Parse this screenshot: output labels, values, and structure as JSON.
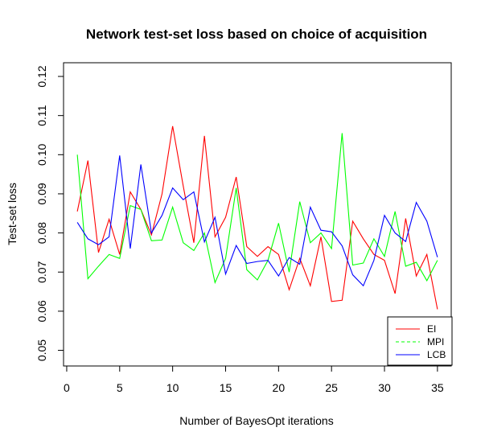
{
  "chart_data": {
    "type": "line",
    "title": "Network test-set loss based on choice of acquisition",
    "xlabel": "Number of BayesOpt iterations",
    "ylabel": "Test-set loss",
    "xlim": [
      -0.3,
      36.3
    ],
    "ylim": [
      0.046,
      0.1235
    ],
    "xticks": [
      0,
      5,
      10,
      15,
      20,
      25,
      30,
      35
    ],
    "yticks": [
      0.05,
      0.06,
      0.07,
      0.08,
      0.09,
      0.1,
      0.11,
      0.12
    ],
    "xtick_labels": [
      "0",
      "5",
      "10",
      "15",
      "20",
      "25",
      "30",
      "35"
    ],
    "ytick_labels": [
      "0.05",
      "0.06",
      "0.07",
      "0.08",
      "0.09",
      "0.10",
      "0.11",
      "0.12"
    ],
    "grid": false,
    "legend_position": "bottom-right",
    "x": [
      1,
      2,
      3,
      4,
      5,
      6,
      7,
      8,
      9,
      10,
      11,
      12,
      13,
      14,
      15,
      16,
      17,
      18,
      19,
      20,
      21,
      22,
      23,
      24,
      25,
      26,
      27,
      28,
      29,
      30,
      31,
      32,
      33,
      34,
      35
    ],
    "series": [
      {
        "name": "EI",
        "color": "#ff0000",
        "values": [
          0.0855,
          0.0985,
          0.075,
          0.0835,
          0.0745,
          0.0905,
          0.086,
          0.0795,
          0.09,
          0.1073,
          0.092,
          0.0775,
          0.1048,
          0.079,
          0.084,
          0.0943,
          0.0765,
          0.074,
          0.0765,
          0.0745,
          0.0655,
          0.0735,
          0.0665,
          0.079,
          0.0625,
          0.0628,
          0.083,
          0.0785,
          0.0745,
          0.073,
          0.0645,
          0.0837,
          0.069,
          0.0745,
          0.0605
        ]
      },
      {
        "name": "MPI",
        "color": "#00ff00",
        "values": [
          0.1,
          0.0683,
          0.0715,
          0.0745,
          0.0735,
          0.087,
          0.086,
          0.078,
          0.0782,
          0.0866,
          0.0775,
          0.0755,
          0.08,
          0.0673,
          0.0735,
          0.0915,
          0.0706,
          0.068,
          0.073,
          0.0825,
          0.07,
          0.088,
          0.0775,
          0.08,
          0.076,
          0.1055,
          0.0718,
          0.0723,
          0.0785,
          0.074,
          0.0855,
          0.0715,
          0.0725,
          0.0678,
          0.073
        ]
      },
      {
        "name": "LCB",
        "color": "#0000ff",
        "values": [
          0.0827,
          0.0785,
          0.077,
          0.079,
          0.0998,
          0.076,
          0.0975,
          0.08,
          0.0845,
          0.0915,
          0.0885,
          0.0905,
          0.0777,
          0.084,
          0.0695,
          0.0768,
          0.0722,
          0.0727,
          0.073,
          0.069,
          0.0737,
          0.072,
          0.0866,
          0.0807,
          0.0803,
          0.0767,
          0.0693,
          0.0665,
          0.073,
          0.0845,
          0.08,
          0.0778,
          0.0878,
          0.083,
          0.0738
        ]
      }
    ]
  }
}
